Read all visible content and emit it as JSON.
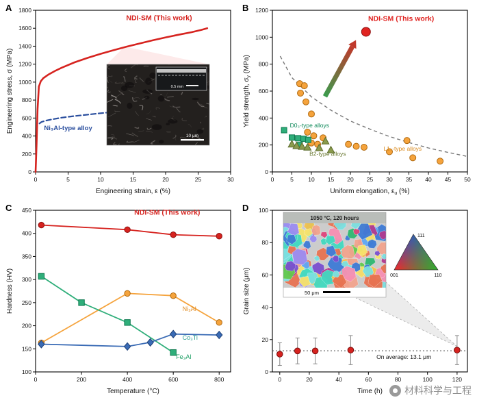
{
  "figure": {
    "bg": "#ffffff",
    "panel_labels": [
      "A",
      "B",
      "C",
      "D"
    ]
  },
  "watermark": {
    "text": "材料科学与工程"
  },
  "chart_data": [
    {
      "panel": "A",
      "type": "line",
      "xlabel": {
        "text": "Engineering strain, ε (%)",
        "sub": "",
        "unit": ""
      },
      "ylabel": {
        "text": "Engineering stress, σ (MPa)",
        "sub": "",
        "unit": ""
      },
      "xlim": [
        0,
        30
      ],
      "ylim": [
        0,
        1800
      ],
      "xticks": [
        0,
        5,
        10,
        15,
        20,
        25,
        30
      ],
      "yticks": [
        0,
        200,
        400,
        600,
        800,
        1000,
        1200,
        1400,
        1600,
        1800
      ],
      "series": [
        {
          "name": "NDI-SM (This work)",
          "color": "#d6231f",
          "dash": "solid",
          "width": 2.6,
          "x": [
            0,
            0.15,
            0.3,
            0.5,
            0.8,
            1.2,
            2,
            3,
            4,
            6,
            8,
            10,
            12,
            14,
            16,
            18,
            20,
            22,
            24,
            25.5,
            26.4
          ],
          "y": [
            0,
            300,
            700,
            950,
            1010,
            1045,
            1085,
            1125,
            1160,
            1220,
            1270,
            1315,
            1355,
            1395,
            1430,
            1465,
            1498,
            1528,
            1556,
            1582,
            1600
          ]
        },
        {
          "name": "Ni₃Al-type alloy",
          "color": "#2a4e9e",
          "dash": "dashed",
          "width": 2.2,
          "x": [
            0.6,
            0.9,
            1.5,
            2.5,
            4,
            6,
            8,
            9.5,
            10.7,
            11.5
          ],
          "y": [
            540,
            556,
            570,
            585,
            604,
            622,
            638,
            650,
            658,
            664
          ]
        }
      ],
      "annotations": [
        {
          "text": "NDI-SM (This work)",
          "color": "#d6231f",
          "bold": true,
          "x": 19,
          "y": 1690,
          "anchor": "middle",
          "size": 10.5
        },
        {
          "text": "Ni₃Al-type alloy",
          "color": "#2a4e9e",
          "bold": true,
          "x": 1.3,
          "y": 465,
          "anchor": "start",
          "size": 9.5
        }
      ],
      "inset": {
        "scalebar": "10 μm",
        "sub_scalebar": "0.5 mm"
      }
    },
    {
      "panel": "B",
      "type": "scatter",
      "xlabel": {
        "text": "Uniform elongation, ε",
        "sub": "u",
        "unit": " (%)"
      },
      "ylabel": {
        "text": "Yield strength, σ",
        "sub": "y",
        "unit": " (MPa)"
      },
      "xlim": [
        0,
        50
      ],
      "ylim": [
        0,
        1200
      ],
      "xticks": [
        0,
        5,
        10,
        15,
        20,
        25,
        30,
        35,
        40,
        45,
        50
      ],
      "yticks": [
        0,
        200,
        400,
        600,
        800,
        1000,
        1200
      ],
      "series": [
        {
          "name": "NDI-SM (This work)",
          "marker": "circle",
          "size": 6.5,
          "fill": "#e02421",
          "edge": "#8f1010",
          "points": [
            [
              24,
              1040
            ]
          ]
        },
        {
          "name": "L1₂-type alloys",
          "marker": "circle",
          "size": 4.5,
          "fill": "#f5a33c",
          "edge": "#b06a10",
          "points": [
            [
              7,
              655
            ],
            [
              8.2,
              640
            ],
            [
              7.2,
              585
            ],
            [
              8.6,
              520
            ],
            [
              10,
              430
            ],
            [
              9,
              295
            ],
            [
              10.6,
              268
            ],
            [
              10,
              215
            ],
            [
              11.6,
              205
            ],
            [
              13,
              253
            ],
            [
              19.5,
              205
            ],
            [
              21.5,
              190
            ],
            [
              23.5,
              183
            ],
            [
              30,
              150
            ],
            [
              34.5,
              233
            ],
            [
              36,
              105
            ],
            [
              43,
              80
            ]
          ]
        },
        {
          "name": "D0₃-type alloys",
          "marker": "square",
          "size": 4,
          "fill": "#2fae7a",
          "edge": "#0f7a50",
          "points": [
            [
              3,
              310
            ],
            [
              5,
              255
            ],
            [
              6.6,
              250
            ],
            [
              8,
              246
            ],
            [
              9.2,
              238
            ],
            [
              7,
              200
            ]
          ]
        },
        {
          "name": "B2-type alloys",
          "marker": "triangle",
          "size": 4.8,
          "fill": "#8a9b4d",
          "edge": "#5c6b2d",
          "points": [
            [
              5,
              205
            ],
            [
              6.2,
              193
            ],
            [
              7.6,
              188
            ],
            [
              9,
              182
            ],
            [
              12,
              178
            ],
            [
              13.6,
              228
            ],
            [
              15,
              162
            ]
          ]
        }
      ],
      "envelope": {
        "dash": "5 4",
        "color": "#777777",
        "points": [
          [
            2,
            860
          ],
          [
            5,
            700
          ],
          [
            10,
            558
          ],
          [
            15,
            458
          ],
          [
            20,
            378
          ],
          [
            25,
            318
          ],
          [
            30,
            263
          ],
          [
            35,
            218
          ],
          [
            40,
            178
          ],
          [
            45,
            145
          ],
          [
            50,
            115
          ]
        ]
      },
      "arrow": {
        "from": [
          13.5,
          560
        ],
        "to": [
          20.5,
          930
        ],
        "color_from": "#3a9d4e",
        "color_to": "#c0392b"
      },
      "annotations": [
        {
          "text": "NDI-SM (This work)",
          "color": "#e02421",
          "bold": true,
          "x": 33,
          "y": 1120,
          "anchor": "middle",
          "size": 10.5
        },
        {
          "text": "D0₃-type alloys",
          "color": "#0f8a5a",
          "bold": false,
          "x": 4.5,
          "y": 330,
          "anchor": "start",
          "size": 8.5
        },
        {
          "text": "B2-type alloys",
          "color": "#6b7a33",
          "bold": false,
          "x": 9.5,
          "y": 120,
          "anchor": "start",
          "size": 8.5
        },
        {
          "text": "L1₂-type alloys",
          "color": "#d98a1e",
          "bold": false,
          "x": 28.5,
          "y": 158,
          "anchor": "start",
          "size": 8.5
        }
      ]
    },
    {
      "panel": "C",
      "type": "line",
      "xlabel": {
        "text": "Temperature (°C)",
        "sub": "",
        "unit": ""
      },
      "ylabel": {
        "text": "Hardness (HV)",
        "sub": "",
        "unit": ""
      },
      "xlim": [
        0,
        850
      ],
      "ylim": [
        100,
        450
      ],
      "xticks": [
        0,
        200,
        400,
        600,
        800
      ],
      "yticks": [
        100,
        150,
        200,
        250,
        300,
        350,
        400,
        450
      ],
      "series": [
        {
          "name": "NDI-SM (This work)",
          "color": "#d6231f",
          "edge": "#8f1010",
          "marker": "circle",
          "width": 1.8,
          "x": [
            25,
            400,
            600,
            800
          ],
          "y": [
            418,
            408,
            397,
            394
          ]
        },
        {
          "name": "Ni₃Al",
          "color": "#f5a33c",
          "edge": "#b06a10",
          "marker": "circle",
          "width": 1.8,
          "x": [
            25,
            400,
            600,
            800
          ],
          "y": [
            163,
            270,
            265,
            207
          ]
        },
        {
          "name": "Fe₃Al",
          "color": "#2fae7a",
          "edge": "#0f7a50",
          "marker": "square",
          "width": 1.8,
          "x": [
            25,
            200,
            400,
            600
          ],
          "y": [
            307,
            250,
            207,
            142
          ]
        },
        {
          "name": "Co₃Ti",
          "color": "#3a6bb5",
          "edge": "#1f4177",
          "marker": "diamond",
          "width": 1.8,
          "x": [
            25,
            400,
            500,
            600,
            800
          ],
          "y": [
            160,
            155,
            164,
            182,
            180
          ]
        }
      ],
      "annotations": [
        {
          "text": "NDI-SM (This work)",
          "color": "#d6231f",
          "bold": true,
          "x": 430,
          "y": 440,
          "anchor": "start",
          "size": 10.5
        },
        {
          "text": "Ni₃Al",
          "color": "#e08a1e",
          "bold": false,
          "x": 640,
          "y": 232,
          "anchor": "start",
          "size": 9
        },
        {
          "text": "Co₃Ti",
          "color": "#2a9d8f",
          "bold": false,
          "x": 640,
          "y": 170,
          "anchor": "start",
          "size": 9
        },
        {
          "text": "Fe₃Al",
          "color": "#1c9e63",
          "bold": false,
          "x": 612,
          "y": 128,
          "anchor": "start",
          "size": 9
        }
      ]
    },
    {
      "panel": "D",
      "type": "line",
      "xlabel": {
        "text": "Time (h)",
        "sub": "",
        "unit": ""
      },
      "ylabel": {
        "text": "Grain size (μm)",
        "sub": "",
        "unit": ""
      },
      "xlim": [
        -5,
        127
      ],
      "ylim": [
        0,
        100
      ],
      "xticks": [
        0,
        20,
        40,
        60,
        80,
        100,
        120
      ],
      "yticks": [
        0,
        20,
        40,
        60,
        80,
        100
      ],
      "series": [
        {
          "name": "Grain size",
          "color": "#d6231f",
          "edge": "#7a0c0c",
          "marker": "circle",
          "x": [
            0,
            12,
            24,
            48,
            120
          ],
          "y": [
            11,
            13,
            13,
            13.5,
            13.5
          ],
          "yerr": [
            7,
            8,
            8,
            9,
            9
          ]
        }
      ],
      "avg_line": {
        "value": 13.1,
        "label": "On average: 13.1 μm"
      },
      "inset": {
        "header": "1050 °C, 120 hours",
        "scalebar": "50 μm",
        "ipf_labels": [
          "111",
          "001",
          "110"
        ],
        "palette": [
          "#e0457b",
          "#7a4fd0",
          "#2eb872",
          "#f2c14e",
          "#e87352",
          "#5fa8f5",
          "#43d9c0",
          "#f78fb3",
          "#9b8cf2",
          "#f7e36b",
          "#7be0e0",
          "#f2a48e",
          "#b23a8f",
          "#3e7bd6",
          "#63c94e"
        ]
      },
      "annotations": []
    }
  ]
}
